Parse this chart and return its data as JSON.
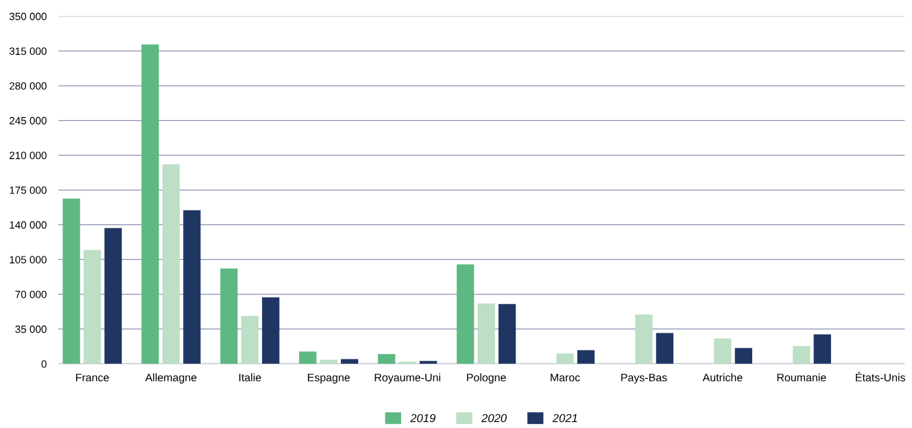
{
  "chart_data": {
    "type": "bar",
    "categories": [
      "France",
      "Allemagne",
      "Italie",
      "Espagne",
      "Royaume-Uni",
      "Pologne",
      "Maroc",
      "Pays-Bas",
      "Autriche",
      "Roumanie",
      "États-Unis"
    ],
    "series": [
      {
        "name": "2019",
        "color": "#5db882",
        "values": [
          166400,
          321700,
          95900,
          12400,
          9700,
          100100,
          0,
          0,
          0,
          0,
          0
        ]
      },
      {
        "name": "2020",
        "color": "#bddfc6",
        "values": [
          114600,
          200900,
          48300,
          4100,
          2100,
          60700,
          10400,
          49700,
          25500,
          17900,
          0
        ]
      },
      {
        "name": "2021",
        "color": "#1f3663",
        "values": [
          136700,
          154600,
          67000,
          4800,
          2800,
          60200,
          13800,
          31100,
          15900,
          29700,
          0
        ]
      }
    ],
    "ylim": [
      0,
      350000
    ],
    "yticks": [
      0,
      {
        "value": 35000,
        "label": "35 000"
      },
      {
        "value": 70000,
        "label": "70 000"
      },
      {
        "value": 105000,
        "label": "105 000"
      },
      {
        "value": 140000,
        "label": "140 000"
      },
      {
        "value": 175000,
        "label": "175 000"
      },
      {
        "value": 210000,
        "label": "210 000"
      },
      {
        "value": 245000,
        "label": "245 000"
      },
      {
        "value": 280000,
        "label": "280 000"
      },
      {
        "value": 315000,
        "label": "315 000"
      },
      {
        "value": 350000,
        "label": "350 000"
      }
    ],
    "grid": "y",
    "legend": "bottom"
  }
}
